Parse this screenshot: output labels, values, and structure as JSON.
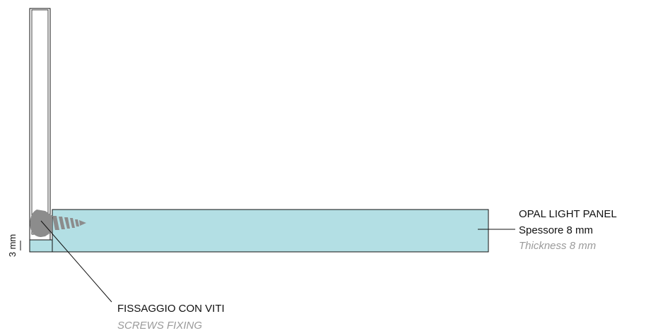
{
  "colors": {
    "panel_fill": "#b3dfe4",
    "outline": "#111111",
    "screw": "#8c8c8c",
    "secondary_text": "#9a9a9a"
  },
  "labels": {
    "panel": {
      "name": "OPAL LIGHT PANEL",
      "thickness_it": "Spessore 8 mm",
      "thickness_en": "Thickness 8 mm"
    },
    "fixing": {
      "it": "FISSAGGIO CON VITI",
      "en": "SCREWS FIXING"
    },
    "dimension": "3 mm"
  }
}
